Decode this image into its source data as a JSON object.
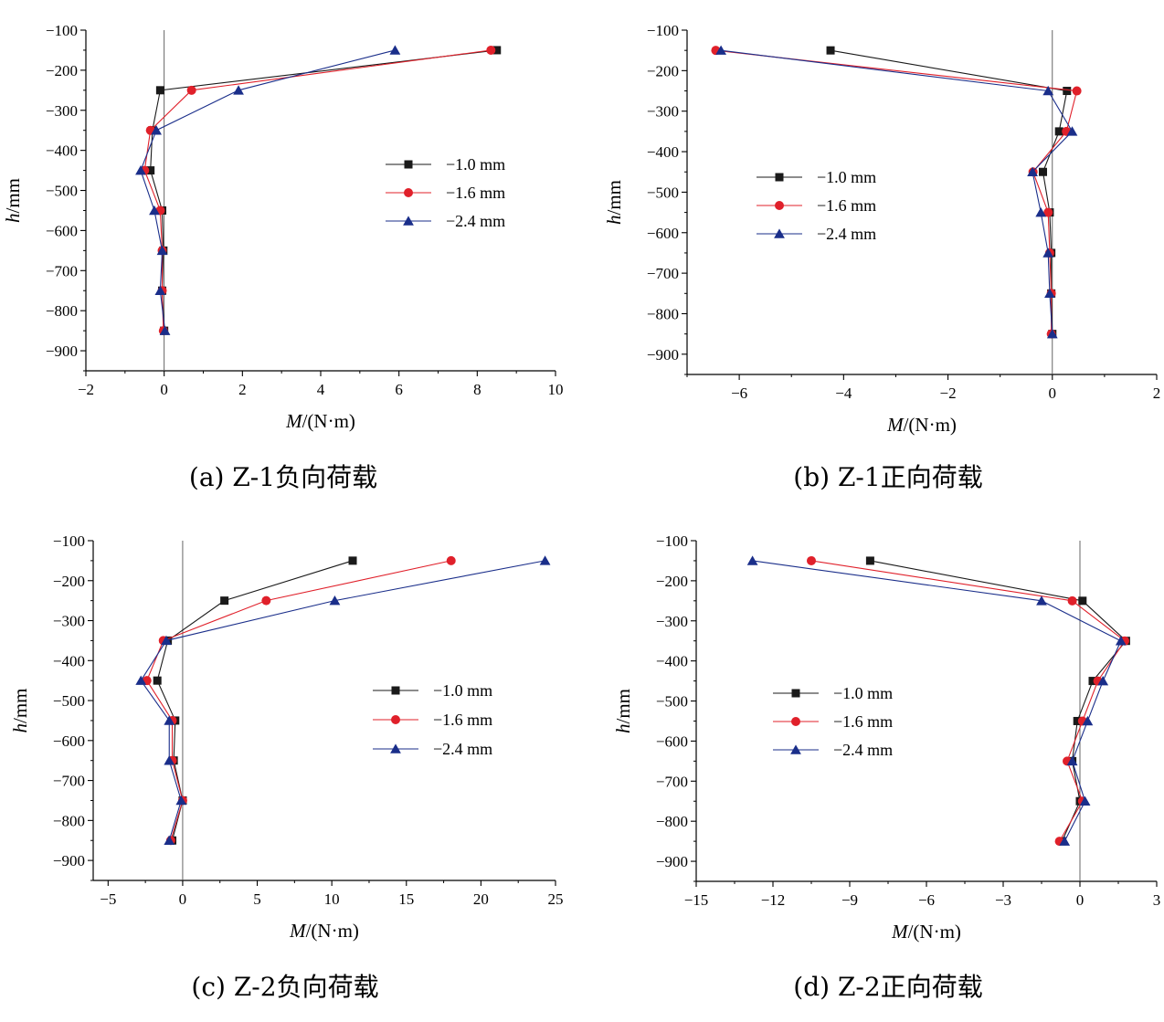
{
  "chart_data": [
    {
      "type": "line",
      "caption": "(a) Z-1负向荷载",
      "xlabel_var": "M",
      "xlabel_unit": "/(N·m)",
      "ylabel_var": "h",
      "ylabel_unit": "/mm",
      "xlim": [
        -2,
        10
      ],
      "ylim": [
        -950,
        -100
      ],
      "xticks": [
        -2,
        0,
        2,
        4,
        6,
        8,
        10
      ],
      "yticks": [
        -100,
        -200,
        -300,
        -400,
        -500,
        -600,
        -700,
        -800,
        -900
      ],
      "x": [
        -150,
        -250,
        -350,
        -450,
        -550,
        -650,
        -750,
        -850
      ],
      "legend_position": "middle-right",
      "series": [
        {
          "name": "−1.0 mm",
          "marker": "square",
          "color": "#1a1a1a",
          "values": [
            8.5,
            -0.1,
            -0.3,
            -0.35,
            -0.05,
            -0.02,
            -0.05,
            0.0
          ]
        },
        {
          "name": "−1.6 mm",
          "marker": "circle",
          "color": "#e0202a",
          "values": [
            8.35,
            0.7,
            -0.35,
            -0.5,
            -0.1,
            -0.05,
            -0.05,
            -0.02
          ]
        },
        {
          "name": "−2.4 mm",
          "marker": "triangle",
          "color": "#1a2e8a",
          "values": [
            5.9,
            1.9,
            -0.2,
            -0.6,
            -0.25,
            -0.05,
            -0.1,
            0.02
          ]
        }
      ]
    },
    {
      "type": "line",
      "caption": "(b) Z-1正向荷载",
      "xlabel_var": "M",
      "xlabel_unit": "/(N·m)",
      "ylabel_var": "h",
      "ylabel_unit": "/mm",
      "xlim": [
        -7,
        2
      ],
      "ylim": [
        -950,
        -100
      ],
      "xticks": [
        -6,
        -4,
        -2,
        0,
        2
      ],
      "yticks": [
        -100,
        -200,
        -300,
        -400,
        -500,
        -600,
        -700,
        -800,
        -900
      ],
      "x": [
        -150,
        -250,
        -350,
        -450,
        -550,
        -650,
        -750,
        -850
      ],
      "legend_position": "middle-left",
      "series": [
        {
          "name": "−1.0 mm",
          "marker": "square",
          "color": "#1a1a1a",
          "values": [
            -4.25,
            0.28,
            0.13,
            -0.18,
            -0.05,
            -0.02,
            -0.02,
            0.0
          ]
        },
        {
          "name": "−1.6 mm",
          "marker": "circle",
          "color": "#e0202a",
          "values": [
            -6.45,
            0.47,
            0.27,
            -0.37,
            -0.08,
            -0.05,
            -0.02,
            -0.02
          ]
        },
        {
          "name": "−2.4 mm",
          "marker": "triangle",
          "color": "#1a2e8a",
          "values": [
            -6.35,
            -0.08,
            0.38,
            -0.38,
            -0.22,
            -0.08,
            -0.05,
            0.0
          ]
        }
      ]
    },
    {
      "type": "line",
      "caption": "(c) Z-2负向荷载",
      "xlabel_var": "M",
      "xlabel_unit": "/(N·m)",
      "ylabel_var": "h",
      "ylabel_unit": "/mm",
      "xlim": [
        -6,
        25
      ],
      "ylim": [
        -950,
        -100
      ],
      "xticks": [
        -5,
        0,
        5,
        10,
        15,
        20,
        25
      ],
      "yticks": [
        -100,
        -200,
        -300,
        -400,
        -500,
        -600,
        -700,
        -800,
        -900
      ],
      "x": [
        -150,
        -250,
        -350,
        -450,
        -550,
        -650,
        -750,
        -850
      ],
      "legend_position": "middle-right",
      "series": [
        {
          "name": "−1.0 mm",
          "marker": "square",
          "color": "#1a1a1a",
          "values": [
            11.4,
            2.8,
            -1.0,
            -1.7,
            -0.5,
            -0.6,
            0.0,
            -0.7
          ]
        },
        {
          "name": "−1.6 mm",
          "marker": "circle",
          "color": "#e0202a",
          "values": [
            18.0,
            5.6,
            -1.3,
            -2.4,
            -0.7,
            -0.7,
            0.0,
            -0.8
          ]
        },
        {
          "name": "−2.4 mm",
          "marker": "triangle",
          "color": "#1a2e8a",
          "values": [
            24.3,
            10.2,
            -1.1,
            -2.8,
            -0.9,
            -0.9,
            -0.1,
            -0.9
          ]
        }
      ]
    },
    {
      "type": "line",
      "caption": "(d) Z-2正向荷载",
      "xlabel_var": "M",
      "xlabel_unit": "/(N·m)",
      "ylabel_var": "h",
      "ylabel_unit": "/mm",
      "xlim": [
        -15,
        3
      ],
      "ylim": [
        -950,
        -100
      ],
      "xticks": [
        -15,
        -12,
        -9,
        -6,
        -3,
        0,
        3
      ],
      "yticks": [
        -100,
        -200,
        -300,
        -400,
        -500,
        -600,
        -700,
        -800,
        -900
      ],
      "x": [
        -150,
        -250,
        -350,
        -450,
        -550,
        -650,
        -750,
        -850
      ],
      "legend_position": "middle-left",
      "series": [
        {
          "name": "−1.0 mm",
          "marker": "square",
          "color": "#1a1a1a",
          "values": [
            -8.2,
            0.1,
            1.8,
            0.5,
            -0.1,
            -0.3,
            0.0,
            -0.7
          ]
        },
        {
          "name": "−1.6 mm",
          "marker": "circle",
          "color": "#e0202a",
          "values": [
            -10.5,
            -0.3,
            1.75,
            0.7,
            0.1,
            -0.5,
            0.1,
            -0.8
          ]
        },
        {
          "name": "−2.4 mm",
          "marker": "triangle",
          "color": "#1a2e8a",
          "values": [
            -12.8,
            -1.5,
            1.6,
            0.9,
            0.3,
            -0.3,
            0.2,
            -0.6
          ]
        }
      ]
    }
  ]
}
